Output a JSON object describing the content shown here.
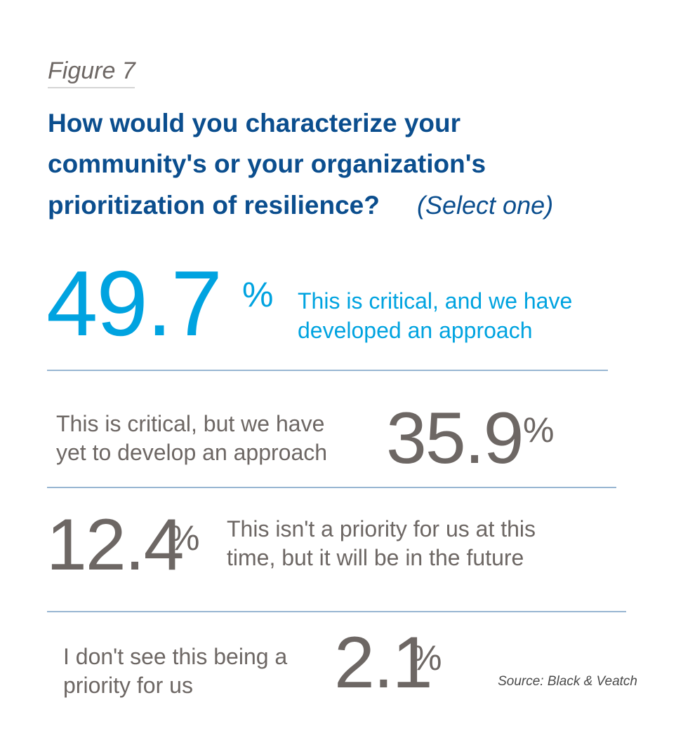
{
  "figure_label": "Figure 7",
  "title_lines": [
    "How would you characterize your",
    "community's or your organization's",
    "prioritization of resilience?"
  ],
  "title_note": "(Select one)",
  "items": [
    {
      "value": 49.7,
      "unit": "%",
      "label_lines": [
        "This is critical, and we have",
        "developed an approach"
      ]
    },
    {
      "value": 35.9,
      "unit": "%",
      "label_lines": [
        "This is critical, but we have",
        "yet to develop an approach"
      ]
    },
    {
      "value": 12.4,
      "unit": "%",
      "label_lines": [
        "This isn't a priority for us at this",
        "time, but it will be in the future"
      ]
    },
    {
      "value": 2.1,
      "unit": "%",
      "label_lines": [
        "I don't see this being a",
        "priority for us"
      ]
    }
  ],
  "source": "Source: Black & Veatch"
}
